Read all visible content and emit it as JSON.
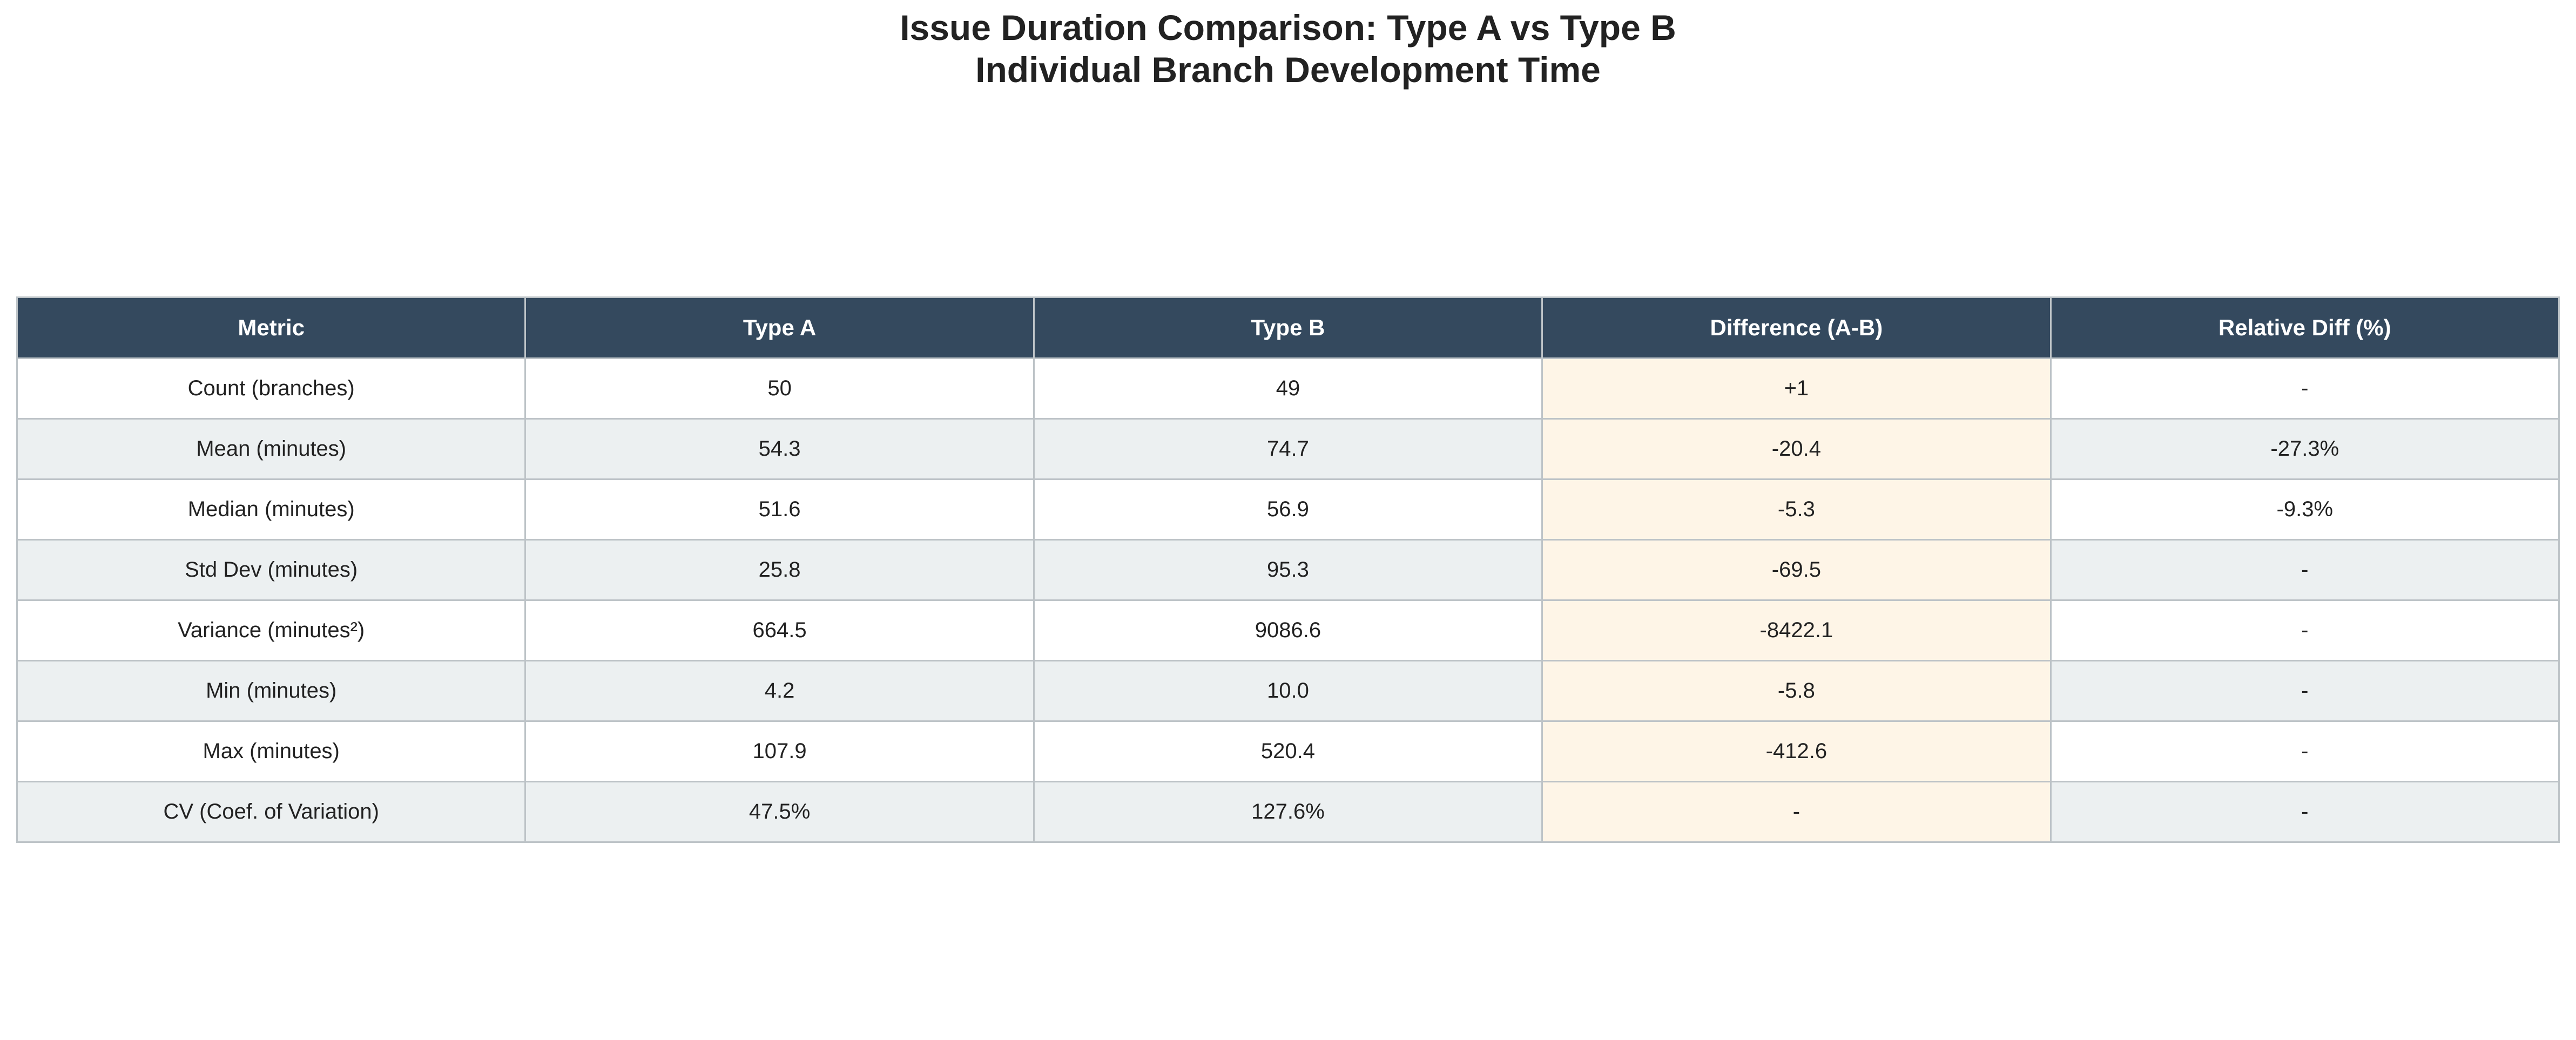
{
  "chart_data": {
    "type": "table",
    "title": "Issue Duration Comparison: Type A vs Type B",
    "subtitle": "Individual Branch Development Time",
    "columns": [
      "Metric",
      "Type A",
      "Type B",
      "Difference (A-B)",
      "Relative Diff (%)"
    ],
    "rows": [
      [
        "Count (branches)",
        "50",
        "49",
        "+1",
        "-"
      ],
      [
        "Mean (minutes)",
        "54.3",
        "74.7",
        "-20.4",
        "-27.3%"
      ],
      [
        "Median (minutes)",
        "51.6",
        "56.9",
        "-5.3",
        "-9.3%"
      ],
      [
        "Std Dev (minutes)",
        "25.8",
        "95.3",
        "-69.5",
        "-"
      ],
      [
        "Variance (minutes²)",
        "664.5",
        "9086.6",
        "-8422.1",
        "-"
      ],
      [
        "Min (minutes)",
        "4.2",
        "10.0",
        "-5.8",
        "-"
      ],
      [
        "Max (minutes)",
        "107.9",
        "520.4",
        "-412.6",
        "-"
      ],
      [
        "CV (Coef. of Variation)",
        "47.5%",
        "127.6%",
        "-",
        "-"
      ]
    ],
    "colors": {
      "header_background": "#34495e",
      "header_text": "#ffffff",
      "row_even_background": "#ffffff",
      "row_odd_background": "#ecf0f1",
      "difference_column_background": "#fef5e7",
      "border": "#bdc3c7"
    }
  }
}
